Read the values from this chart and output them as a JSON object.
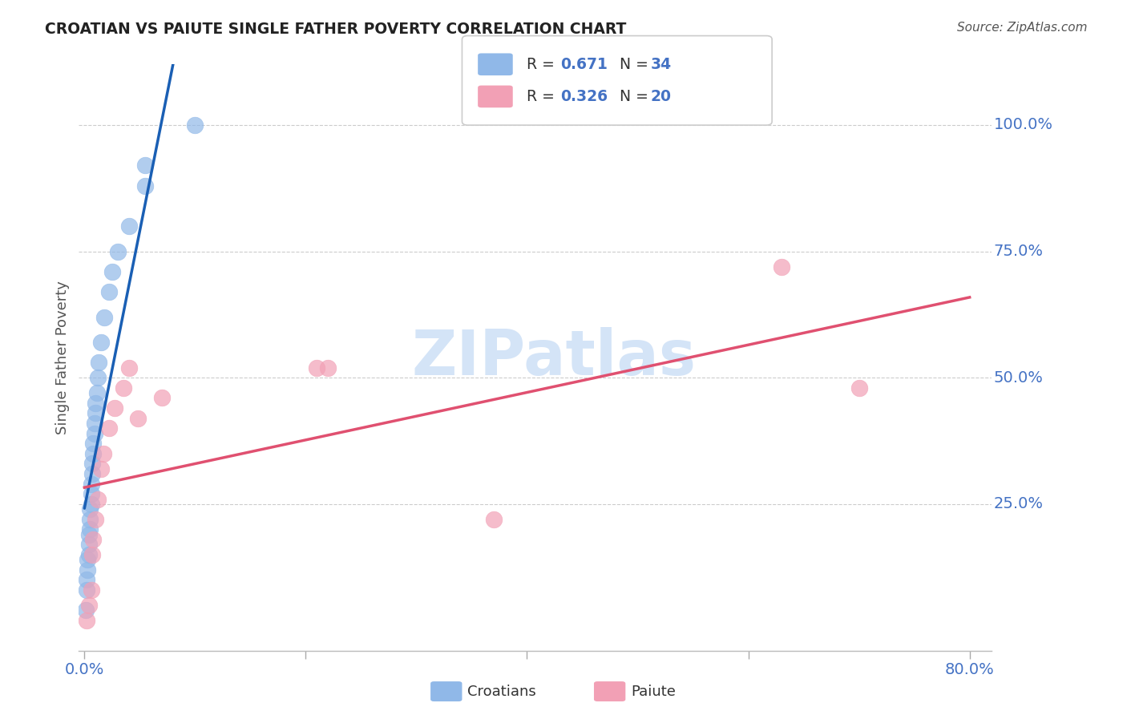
{
  "title": "CROATIAN VS PAIUTE SINGLE FATHER POVERTY CORRELATION CHART",
  "source": "Source: ZipAtlas.com",
  "ylabel_text": "Single Father Poverty",
  "xlim": [
    0.0,
    0.8
  ],
  "ylim": [
    0.0,
    1.1
  ],
  "croatian_R": 0.671,
  "croatian_N": 34,
  "paiute_R": 0.326,
  "paiute_N": 20,
  "croatian_color": "#90b8e8",
  "paiute_color": "#f2a0b5",
  "croatian_line_color": "#1a5fb4",
  "paiute_line_color": "#e05070",
  "background_color": "#ffffff",
  "grid_color": "#cccccc",
  "label_color": "#4472c4",
  "croatian_x": [
    0.001,
    0.002,
    0.002,
    0.003,
    0.003,
    0.004,
    0.004,
    0.004,
    0.005,
    0.005,
    0.005,
    0.006,
    0.006,
    0.006,
    0.007,
    0.007,
    0.008,
    0.008,
    0.009,
    0.009,
    0.01,
    0.01,
    0.011,
    0.012,
    0.013,
    0.015,
    0.018,
    0.022,
    0.025,
    0.03,
    0.04,
    0.055,
    0.055,
    0.1
  ],
  "croatian_y": [
    0.04,
    0.08,
    0.1,
    0.12,
    0.14,
    0.15,
    0.17,
    0.19,
    0.2,
    0.22,
    0.24,
    0.25,
    0.27,
    0.29,
    0.31,
    0.33,
    0.35,
    0.37,
    0.39,
    0.41,
    0.43,
    0.45,
    0.47,
    0.5,
    0.53,
    0.57,
    0.62,
    0.67,
    0.71,
    0.75,
    0.8,
    0.88,
    0.92,
    1.0
  ],
  "paiute_x": [
    0.002,
    0.004,
    0.006,
    0.007,
    0.008,
    0.01,
    0.012,
    0.015,
    0.017,
    0.022,
    0.027,
    0.035,
    0.04,
    0.048,
    0.07,
    0.21,
    0.22,
    0.37,
    0.63,
    0.7
  ],
  "paiute_y": [
    0.02,
    0.05,
    0.08,
    0.15,
    0.18,
    0.22,
    0.26,
    0.32,
    0.35,
    0.4,
    0.44,
    0.48,
    0.52,
    0.42,
    0.46,
    0.52,
    0.52,
    0.22,
    0.72,
    0.48
  ],
  "y_ticks": [
    0.25,
    0.5,
    0.75,
    1.0
  ],
  "y_tick_labels": [
    "25.0%",
    "50.0%",
    "75.0%",
    "100.0%"
  ],
  "x_ticks_minor": [
    0.0,
    0.2,
    0.4,
    0.6,
    0.8
  ],
  "watermark_text": "ZIPatlas",
  "watermark_color": "#d4e4f7"
}
